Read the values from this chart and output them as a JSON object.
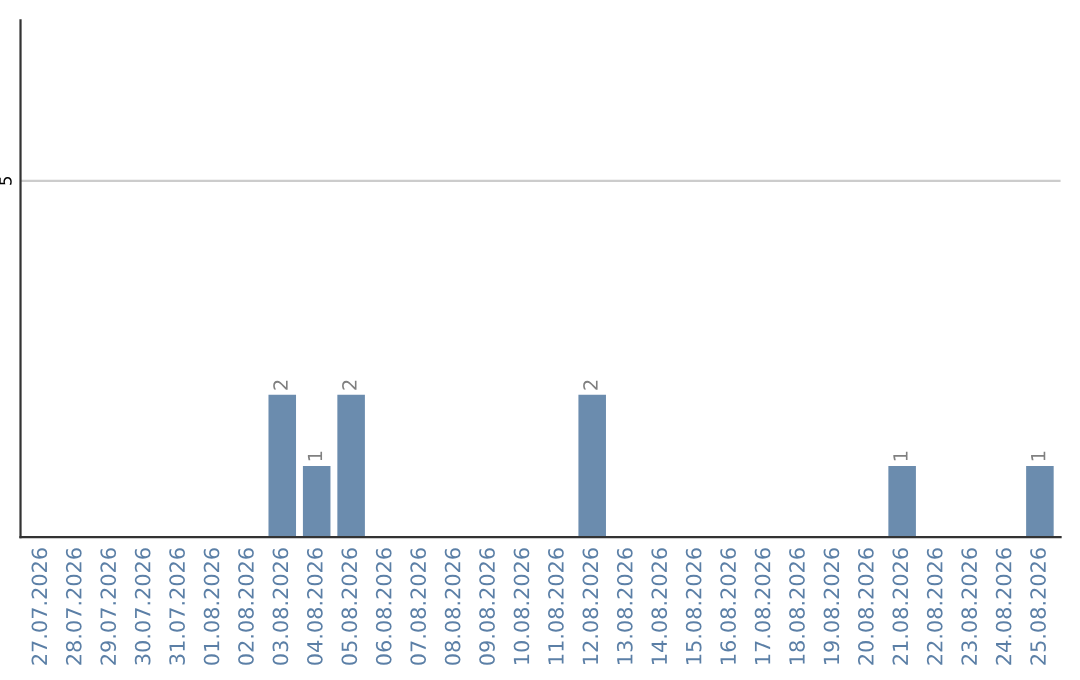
{
  "chart_data": {
    "type": "bar",
    "categories": [
      "27.07.2026",
      "28.07.2026",
      "29.07.2026",
      "30.07.2026",
      "31.07.2026",
      "01.08.2026",
      "02.08.2026",
      "03.08.2026",
      "04.08.2026",
      "05.08.2026",
      "06.08.2026",
      "07.08.2026",
      "08.08.2026",
      "09.08.2026",
      "10.08.2026",
      "11.08.2026",
      "12.08.2026",
      "13.08.2026",
      "14.08.2026",
      "15.08.2026",
      "16.08.2026",
      "17.08.2026",
      "18.08.2026",
      "19.08.2026",
      "20.08.2026",
      "21.08.2026",
      "22.08.2026",
      "23.08.2026",
      "24.08.2026",
      "25.08.2026"
    ],
    "values": [
      0,
      0,
      0,
      0,
      0,
      0,
      0,
      2,
      1,
      2,
      0,
      0,
      0,
      0,
      0,
      0,
      2,
      0,
      0,
      0,
      0,
      0,
      0,
      0,
      0,
      1,
      0,
      0,
      0,
      1
    ],
    "value_labels": [
      null,
      null,
      null,
      null,
      null,
      null,
      null,
      "2",
      "1",
      "2",
      null,
      null,
      null,
      null,
      null,
      null,
      "2",
      null,
      null,
      null,
      null,
      null,
      null,
      null,
      null,
      "1",
      null,
      null,
      null,
      "1"
    ],
    "color": "#6b8cae",
    "ylim": [
      0,
      7.25
    ],
    "yticks": [
      5
    ],
    "grid": "y"
  }
}
